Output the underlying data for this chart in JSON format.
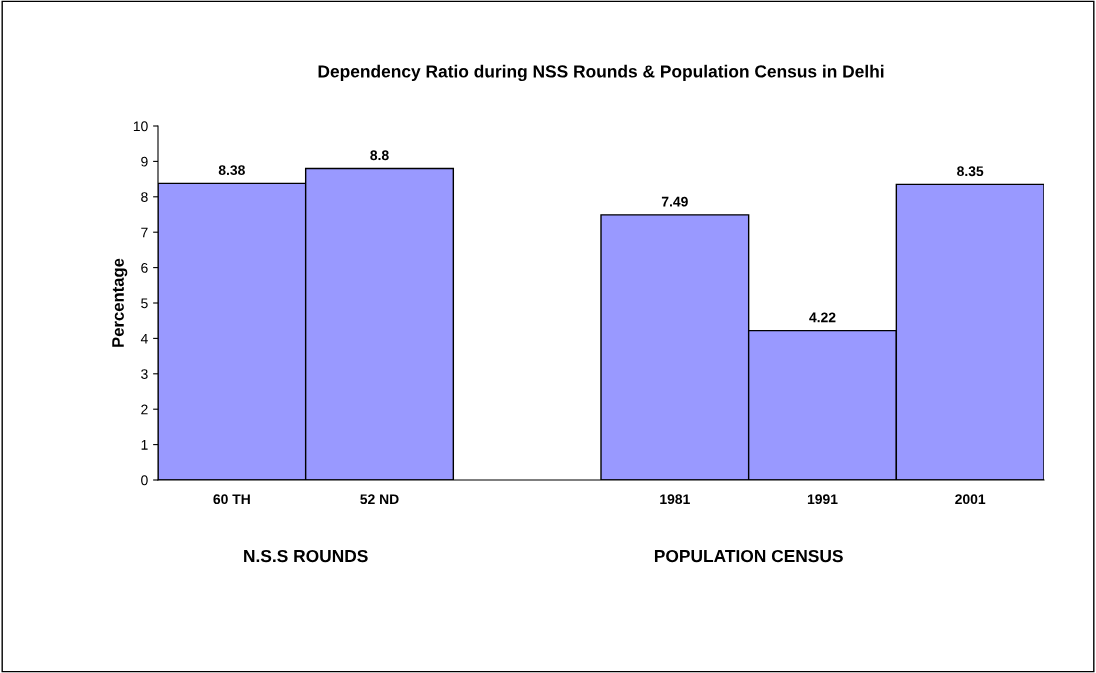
{
  "chart_data": {
    "type": "bar",
    "title": "Dependency Ratio during NSS Rounds & Population Census in Delhi",
    "ylabel": "Percentage",
    "categories": [
      "60 TH",
      "52 ND",
      null,
      "1981",
      "1991",
      "2001"
    ],
    "values": [
      8.38,
      8.8,
      null,
      7.49,
      4.22,
      8.35
    ],
    "color": "#9999ff",
    "ylim": [
      0,
      10
    ],
    "yticks": [
      0,
      1,
      2,
      3,
      4,
      5,
      6,
      7,
      8,
      9,
      10
    ],
    "grid": false,
    "data_labels": true,
    "annotations": [
      "N.S.S ROUNDS",
      "POPULATION CENSUS"
    ]
  }
}
